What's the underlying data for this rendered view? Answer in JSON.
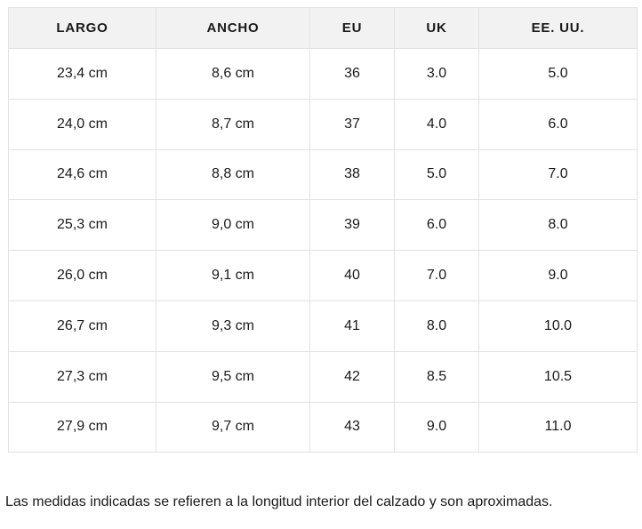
{
  "table": {
    "headers": [
      "LARGO",
      "ANCHO",
      "EU",
      "UK",
      "EE. UU."
    ],
    "rows": [
      [
        "23,4 cm",
        "8,6 cm",
        "36",
        "3.0",
        "5.0"
      ],
      [
        "24,0 cm",
        "8,7 cm",
        "37",
        "4.0",
        "6.0"
      ],
      [
        "24,6 cm",
        "8,8 cm",
        "38",
        "5.0",
        "7.0"
      ],
      [
        "25,3 cm",
        "9,0 cm",
        "39",
        "6.0",
        "8.0"
      ],
      [
        "26,0 cm",
        "9,1 cm",
        "40",
        "7.0",
        "9.0"
      ],
      [
        "26,7 cm",
        "9,3 cm",
        "41",
        "8.0",
        "10.0"
      ],
      [
        "27,3 cm",
        "9,5 cm",
        "42",
        "8.5",
        "10.5"
      ],
      [
        "27,9 cm",
        "9,7 cm",
        "43",
        "9.0",
        "11.0"
      ]
    ]
  },
  "footer": {
    "note": "Las medidas indicadas se refieren a la longitud interior del calzado y son aproximadas."
  },
  "colors": {
    "header_background": "#f2f2f2",
    "border": "#e2e2e2",
    "text": "#1a1a1a",
    "page_background": "#ffffff"
  }
}
